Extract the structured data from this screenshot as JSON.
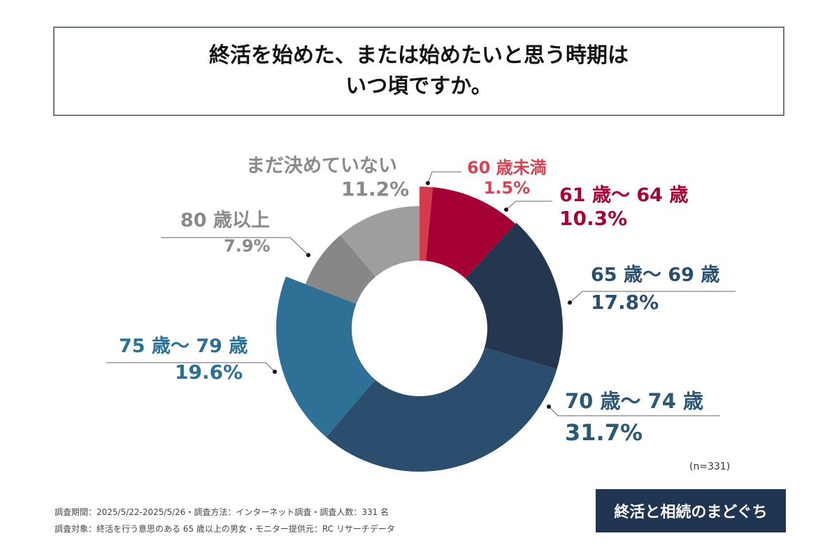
{
  "title": {
    "line1": "終活を始めた、または始めたいと思う時期は",
    "line2": "いつ頃ですか。"
  },
  "chart_data": {
    "type": "pie",
    "variant": "donut",
    "title": "終活を始めた、または始めたいと思う時期はいつ頃ですか。",
    "categories": [
      "60歳未満",
      "61歳〜64歳",
      "65歳〜69歳",
      "70歳〜74歳",
      "75歳〜79歳",
      "80歳以上",
      "まだ決めていない"
    ],
    "values": [
      1.5,
      10.3,
      17.8,
      31.7,
      19.6,
      7.9,
      11.2
    ],
    "unit": "%",
    "colors": [
      "#d23c4c",
      "#a50034",
      "#253650",
      "#2b4e6e",
      "#2e7096",
      "#878787",
      "#9e9e9e"
    ],
    "label_colors": [
      "#d24656",
      "#a50034",
      "#2b4e6e",
      "#2b5877",
      "#2e6f96",
      "#8a8a8a",
      "#8a8a8a"
    ],
    "labels": [
      {
        "name": "60 歳未満",
        "value": "1.5%"
      },
      {
        "name": "61 歳〜 64 歳",
        "value": "10.3%"
      },
      {
        "name": "65 歳〜 69 歳",
        "value": "17.8%"
      },
      {
        "name": "70 歳〜 74 歳",
        "value": "31.7%"
      },
      {
        "name": "75 歳〜 79 歳",
        "value": "19.6%"
      },
      {
        "name": "80 歳以上",
        "value": "7.9%"
      },
      {
        "name": "まだ決めていない",
        "value": "11.2%"
      }
    ],
    "sample": "(n=331)"
  },
  "footer": {
    "line1": "調査期間：2025/5/22-2025/5/26・調査方法：インターネット調査・調査人数：331 名",
    "line2": "調査対象：終活を行う意思のある 65 歳以上の男女・モニター提供元：RC リサーチデータ",
    "logo": "終活と相続のまどぐち"
  }
}
